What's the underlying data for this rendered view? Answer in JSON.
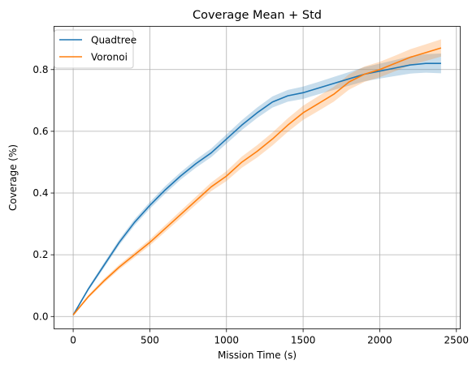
{
  "chart_data": {
    "type": "line",
    "title": "Coverage Mean + Std",
    "xlabel": "Mission Time (s)",
    "ylabel": "Coverage (%)",
    "xlim": [
      -125,
      2525
    ],
    "ylim": [
      -0.04,
      0.94
    ],
    "xticks": [
      0,
      500,
      1000,
      1500,
      2000,
      2500
    ],
    "xtick_labels": [
      "0",
      "500",
      "1000",
      "1500",
      "2000",
      "2500"
    ],
    "yticks": [
      0.0,
      0.2,
      0.4,
      0.6,
      0.8
    ],
    "ytick_labels": [
      "0.0",
      "0.2",
      "0.4",
      "0.6",
      "0.8"
    ],
    "grid": true,
    "legend_position": "top-left",
    "band": "mean ± std",
    "series": [
      {
        "name": "Quadtree",
        "color": "#1f77b4",
        "x": [
          0,
          100,
          200,
          300,
          400,
          500,
          600,
          700,
          800,
          900,
          1000,
          1100,
          1200,
          1300,
          1400,
          1500,
          1600,
          1700,
          1800,
          1900,
          2000,
          2100,
          2200,
          2300,
          2400
        ],
        "mean": [
          0.005,
          0.09,
          0.165,
          0.24,
          0.305,
          0.36,
          0.41,
          0.455,
          0.495,
          0.53,
          0.575,
          0.62,
          0.66,
          0.695,
          0.715,
          0.725,
          0.74,
          0.755,
          0.77,
          0.785,
          0.795,
          0.805,
          0.815,
          0.82,
          0.82
        ],
        "std": [
          0.003,
          0.006,
          0.008,
          0.009,
          0.01,
          0.011,
          0.012,
          0.012,
          0.013,
          0.014,
          0.015,
          0.016,
          0.017,
          0.018,
          0.019,
          0.02,
          0.02,
          0.021,
          0.022,
          0.023,
          0.024,
          0.026,
          0.028,
          0.03,
          0.032
        ]
      },
      {
        "name": "Voronoi",
        "color": "#ff7f0e",
        "x": [
          0,
          100,
          200,
          300,
          400,
          500,
          600,
          700,
          800,
          900,
          1000,
          1100,
          1200,
          1300,
          1400,
          1500,
          1600,
          1700,
          1800,
          1900,
          2000,
          2100,
          2200,
          2300,
          2400
        ],
        "mean": [
          0.005,
          0.065,
          0.115,
          0.16,
          0.2,
          0.24,
          0.285,
          0.33,
          0.375,
          0.42,
          0.455,
          0.5,
          0.535,
          0.575,
          0.62,
          0.66,
          0.69,
          0.72,
          0.76,
          0.785,
          0.8,
          0.82,
          0.84,
          0.855,
          0.87
        ],
        "std": [
          0.003,
          0.005,
          0.007,
          0.008,
          0.009,
          0.01,
          0.011,
          0.012,
          0.013,
          0.014,
          0.016,
          0.018,
          0.02,
          0.021,
          0.022,
          0.023,
          0.024,
          0.024,
          0.025,
          0.025,
          0.025,
          0.025,
          0.026,
          0.027,
          0.028
        ]
      }
    ]
  }
}
